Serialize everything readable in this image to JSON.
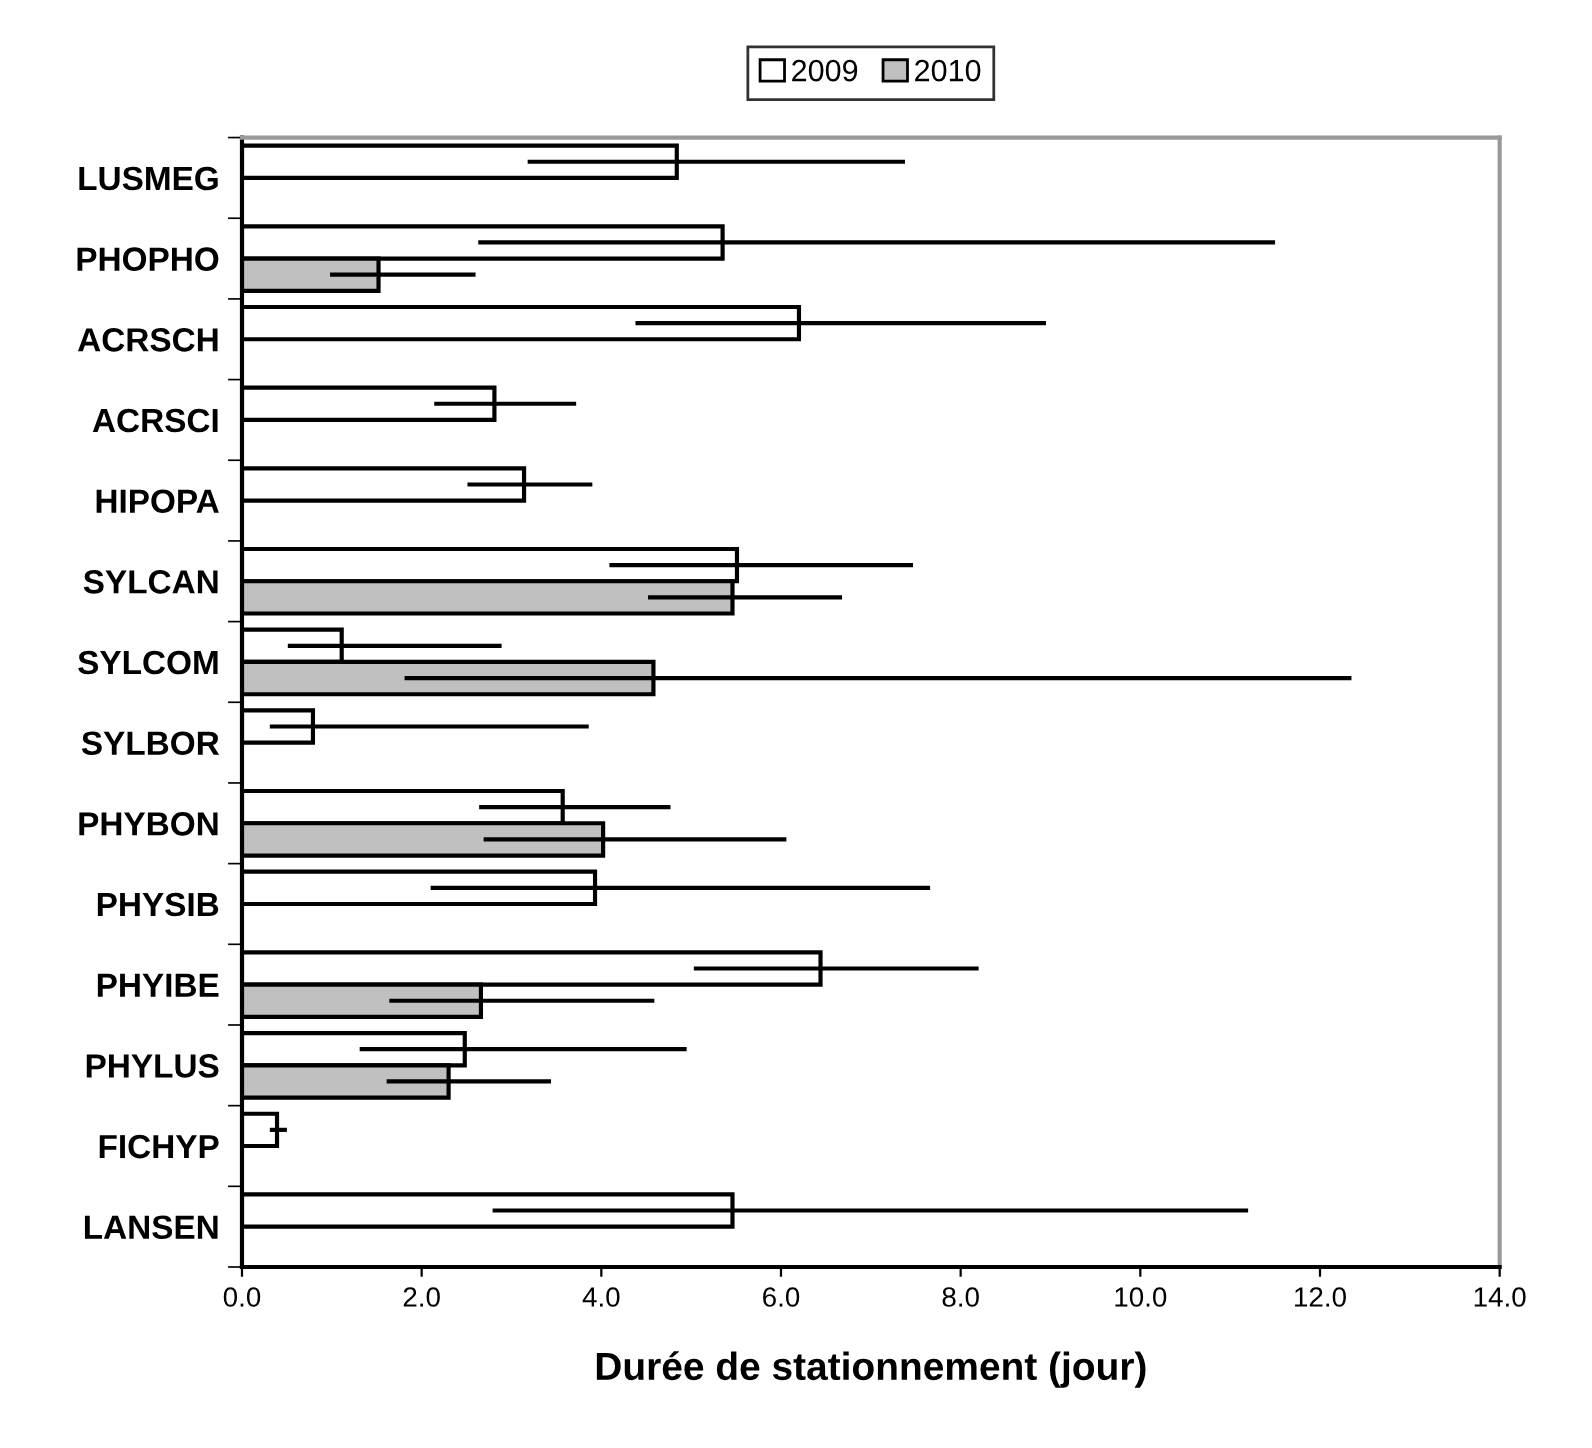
{
  "chart_data": {
    "type": "bar",
    "orientation": "horizontal",
    "xlabel": "Durée de stationnement (jour)",
    "categories": [
      "LUSMEG",
      "PHOPHO",
      "ACRSCH",
      "ACRSCI",
      "HIPOPA",
      "SYLCAN",
      "SYLCOM",
      "SYLBOR",
      "PHYBON",
      "PHYSIB",
      "PHYIBE",
      "PHYLUS",
      "FICHYP",
      "LANSEN"
    ],
    "series": [
      {
        "name": "2009",
        "color": "#ffffff",
        "values": [
          4.84,
          5.35,
          6.2,
          2.81,
          3.14,
          5.51,
          1.11,
          0.79,
          3.57,
          3.93,
          6.44,
          2.48,
          0.39,
          5.46
        ],
        "errors": [
          [
            3.18,
            7.38
          ],
          [
            2.63,
            11.5
          ],
          [
            4.38,
            8.95
          ],
          [
            2.14,
            3.72
          ],
          [
            2.51,
            3.9
          ],
          [
            4.09,
            7.47
          ],
          [
            0.51,
            2.89
          ],
          [
            0.31,
            3.86
          ],
          [
            2.64,
            4.77
          ],
          [
            2.1,
            7.66
          ],
          [
            5.03,
            8.2
          ],
          [
            1.31,
            4.95
          ],
          [
            0.31,
            0.5
          ],
          [
            2.79,
            11.2
          ]
        ]
      },
      {
        "name": "2010",
        "color": "#c0c0c0",
        "values": [
          null,
          1.52,
          null,
          null,
          null,
          5.46,
          4.58,
          null,
          4.02,
          null,
          2.66,
          2.3,
          null,
          null
        ],
        "errors": [
          null,
          [
            0.98,
            2.6
          ],
          null,
          null,
          null,
          [
            4.52,
            6.68
          ],
          [
            1.81,
            12.35
          ],
          null,
          [
            2.69,
            6.06
          ],
          null,
          [
            1.64,
            4.59
          ],
          [
            1.61,
            3.44
          ],
          null,
          null
        ]
      }
    ],
    "xlim": [
      0,
      14
    ],
    "xticks": [
      {
        "value": 0,
        "label": "0.0"
      },
      {
        "value": 2,
        "label": "2.0"
      },
      {
        "value": 4,
        "label": "4.0"
      },
      {
        "value": 6,
        "label": "6.0"
      },
      {
        "value": 8,
        "label": "8.0"
      },
      {
        "value": 10,
        "label": "10.0"
      },
      {
        "value": 12,
        "label": "12.0"
      },
      {
        "value": 14,
        "label": "14.0"
      }
    ],
    "grid": false,
    "legend": "top"
  }
}
